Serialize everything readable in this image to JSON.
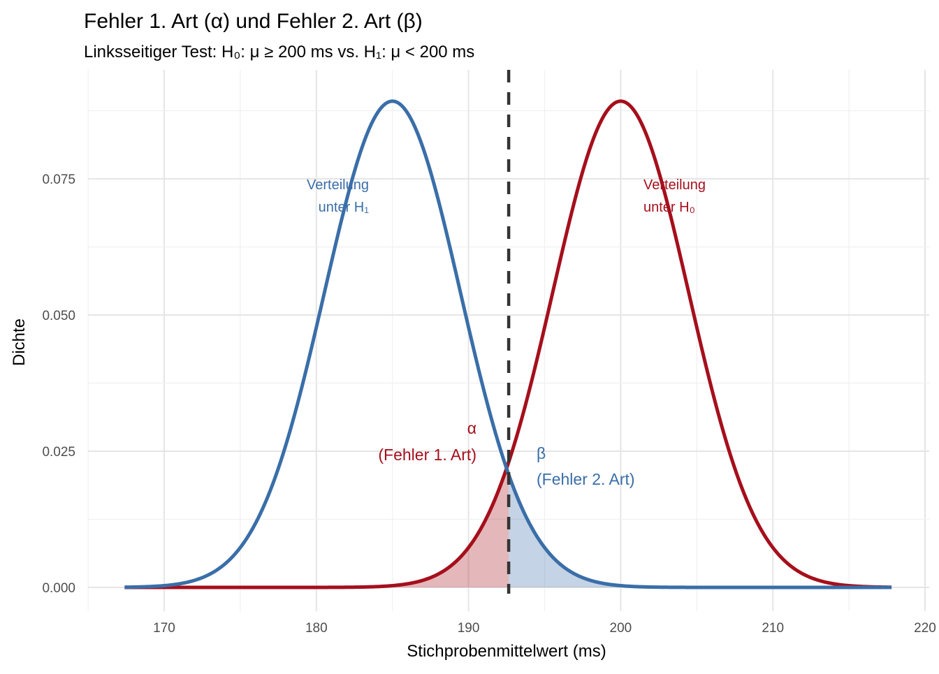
{
  "chart_data": {
    "type": "line",
    "title": "Fehler 1. Art (α) und Fehler 2. Art (β)",
    "subtitle": "Linksseitiger Test: H₀: μ ≥ 200 ms vs. H₁: μ < 200 ms",
    "xlabel": "Stichprobenmittelwert (ms)",
    "ylabel": "Dichte",
    "xlim": [
      165,
      220
    ],
    "ylim": [
      0,
      0.09
    ],
    "x_ticks": [
      170,
      180,
      190,
      200,
      210,
      220
    ],
    "y_ticks": [
      0,
      0.025,
      0.05,
      0.075
    ],
    "y_tick_labels": [
      "0.000",
      "0.025",
      "0.050",
      "0.075"
    ],
    "x_range": [
      167.4,
      217.8
    ],
    "grid": true,
    "critical_value": 192.64,
    "series": [
      {
        "name": "Verteilung unter H₁",
        "distribution": "normal",
        "mean": 185,
        "sd": 4.47,
        "color": "#3A6EA8"
      },
      {
        "name": "Verteilung unter H₀",
        "distribution": "normal",
        "mean": 200,
        "sd": 4.47,
        "color": "#A50F1C"
      }
    ],
    "annotations": {
      "h1_label": [
        "Verteilung",
        "unter H₁"
      ],
      "h0_label": [
        "Verteilung",
        "unter H₀"
      ],
      "alpha_label": [
        "α",
        "(Fehler 1. Art)"
      ],
      "beta_label": [
        "β",
        "(Fehler 2. Art)"
      ]
    },
    "fills": {
      "alpha_color": "#A50F1C",
      "beta_color": "#3A6EA8"
    }
  }
}
